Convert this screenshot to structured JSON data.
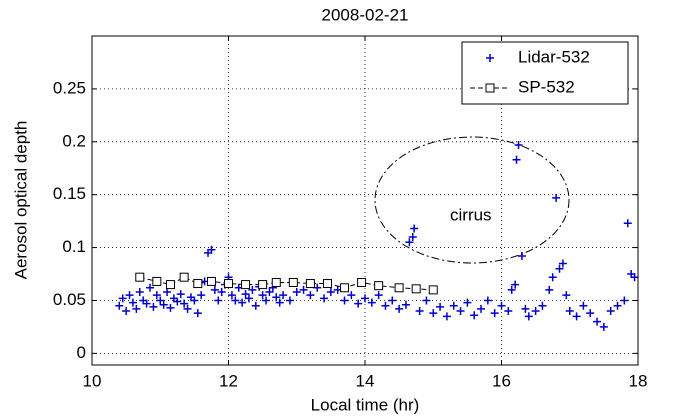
{
  "chart_data": {
    "type": "scatter",
    "title": "2008-02-21",
    "xlabel": "Local time (hr)",
    "ylabel": "Aerosol optical depth",
    "xlim": [
      10,
      18
    ],
    "ylim": [
      -0.011,
      0.3
    ],
    "xticks": [
      10,
      12,
      14,
      16,
      18
    ],
    "yticks": [
      0,
      0.05,
      0.1,
      0.15,
      0.2,
      0.25
    ],
    "grid": true,
    "legend": "upper right",
    "annotations": [
      {
        "text": "cirrus",
        "x": 15.55,
        "y": 0.13
      }
    ],
    "series": [
      {
        "name": "Lidar-532",
        "color": "#0000cc",
        "marker": "plus",
        "line": "none",
        "x": [
          10.4,
          10.45,
          10.5,
          10.55,
          10.6,
          10.65,
          10.7,
          10.75,
          10.8,
          10.85,
          10.9,
          10.95,
          11.0,
          11.05,
          11.1,
          11.15,
          11.2,
          11.25,
          11.3,
          11.35,
          11.4,
          11.45,
          11.5,
          11.55,
          11.6,
          11.65,
          11.7,
          11.75,
          11.8,
          11.85,
          11.9,
          11.95,
          12.0,
          12.05,
          12.1,
          12.15,
          12.2,
          12.25,
          12.3,
          12.35,
          12.4,
          12.45,
          12.5,
          12.55,
          12.6,
          12.65,
          12.7,
          12.75,
          12.8,
          12.9,
          13.0,
          13.1,
          13.2,
          13.3,
          13.4,
          13.5,
          13.6,
          13.7,
          13.8,
          13.9,
          14.0,
          14.1,
          14.2,
          14.3,
          14.4,
          14.5,
          14.6,
          14.65,
          14.7,
          14.72,
          14.8,
          14.9,
          15.0,
          15.1,
          15.2,
          15.3,
          15.4,
          15.5,
          15.6,
          15.7,
          15.8,
          15.9,
          16.0,
          16.1,
          16.15,
          16.2,
          16.22,
          16.25,
          16.3,
          16.35,
          16.4,
          16.5,
          16.6,
          16.7,
          16.75,
          16.8,
          16.85,
          16.9,
          16.95,
          17.0,
          17.1,
          17.2,
          17.3,
          17.4,
          17.5,
          17.6,
          17.7,
          17.8,
          17.85,
          17.9,
          17.95
        ],
        "values": [
          0.045,
          0.052,
          0.04,
          0.055,
          0.048,
          0.042,
          0.058,
          0.05,
          0.047,
          0.062,
          0.044,
          0.055,
          0.05,
          0.046,
          0.058,
          0.043,
          0.052,
          0.049,
          0.056,
          0.047,
          0.042,
          0.053,
          0.05,
          0.038,
          0.055,
          0.068,
          0.095,
          0.098,
          0.06,
          0.05,
          0.058,
          0.065,
          0.072,
          0.055,
          0.05,
          0.062,
          0.048,
          0.056,
          0.052,
          0.06,
          0.045,
          0.063,
          0.055,
          0.05,
          0.058,
          0.062,
          0.053,
          0.048,
          0.055,
          0.05,
          0.058,
          0.06,
          0.055,
          0.062,
          0.052,
          0.058,
          0.06,
          0.05,
          0.055,
          0.047,
          0.052,
          0.048,
          0.055,
          0.045,
          0.05,
          0.042,
          0.046,
          0.105,
          0.11,
          0.118,
          0.04,
          0.05,
          0.038,
          0.044,
          0.035,
          0.045,
          0.04,
          0.048,
          0.036,
          0.042,
          0.05,
          0.038,
          0.045,
          0.04,
          0.06,
          0.065,
          0.183,
          0.197,
          0.092,
          0.042,
          0.035,
          0.04,
          0.045,
          0.06,
          0.072,
          0.147,
          0.08,
          0.085,
          0.055,
          0.04,
          0.035,
          0.045,
          0.038,
          0.03,
          0.025,
          0.04,
          0.045,
          0.05,
          0.123,
          0.075,
          0.072
        ]
      },
      {
        "name": "SP-532",
        "color": "#000000",
        "marker": "square",
        "line": "dashed",
        "x": [
          10.7,
          10.95,
          11.15,
          11.35,
          11.55,
          11.75,
          12.0,
          12.25,
          12.5,
          12.7,
          12.95,
          13.2,
          13.45,
          13.7,
          13.95,
          14.2,
          14.5,
          14.75,
          15.0
        ],
        "values": [
          0.072,
          0.068,
          0.065,
          0.072,
          0.066,
          0.068,
          0.066,
          0.065,
          0.065,
          0.067,
          0.067,
          0.066,
          0.066,
          0.062,
          0.067,
          0.064,
          0.062,
          0.061,
          0.06
        ]
      }
    ]
  }
}
